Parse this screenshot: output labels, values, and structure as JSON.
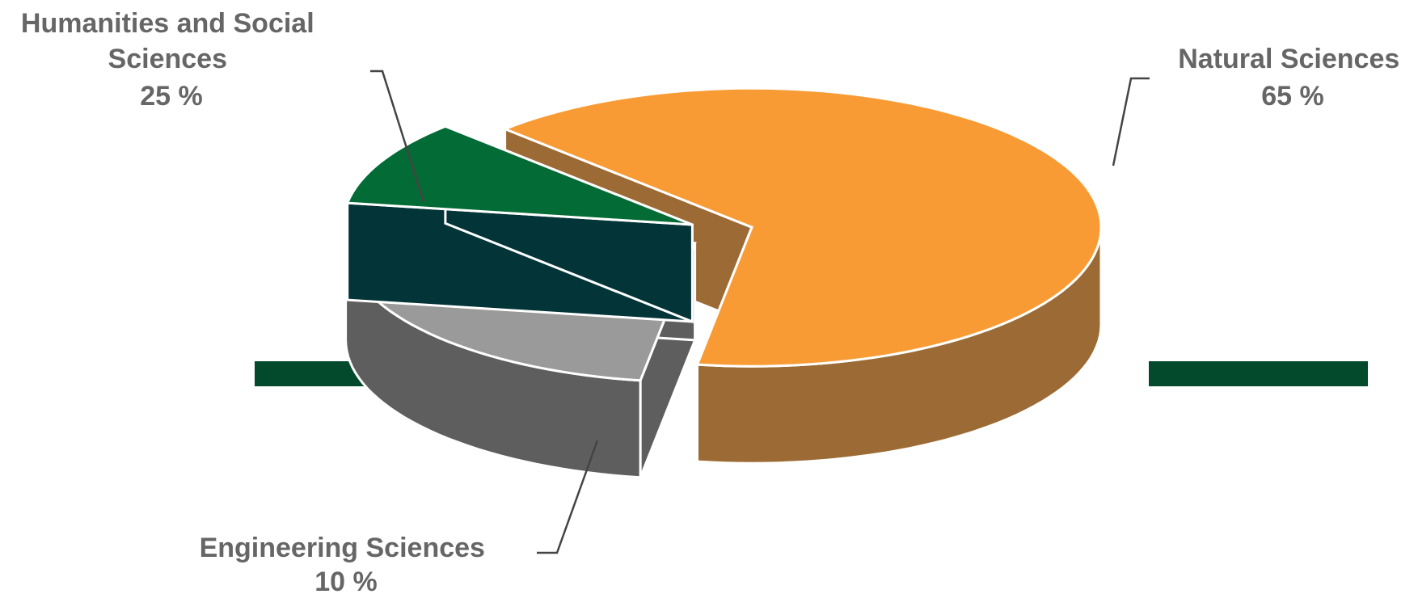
{
  "chart_data": {
    "type": "pie",
    "style": "3d-exploded",
    "legend": "none",
    "slices": [
      {
        "name": "Natural Sciences",
        "value": 65,
        "value_label": "65 %",
        "top_color": "#f99b35",
        "side_color": "#9c6b35"
      },
      {
        "name": "Humanities and Social Sciences",
        "value": 25,
        "value_label": "25 %",
        "top_color": "#9a9a9a",
        "side_color": "#5e5e5e"
      },
      {
        "name": "Engineering Sciences",
        "value": 10,
        "value_label": "10 %",
        "top_color": "#036b36",
        "side_color": "#023438"
      }
    ]
  }
}
